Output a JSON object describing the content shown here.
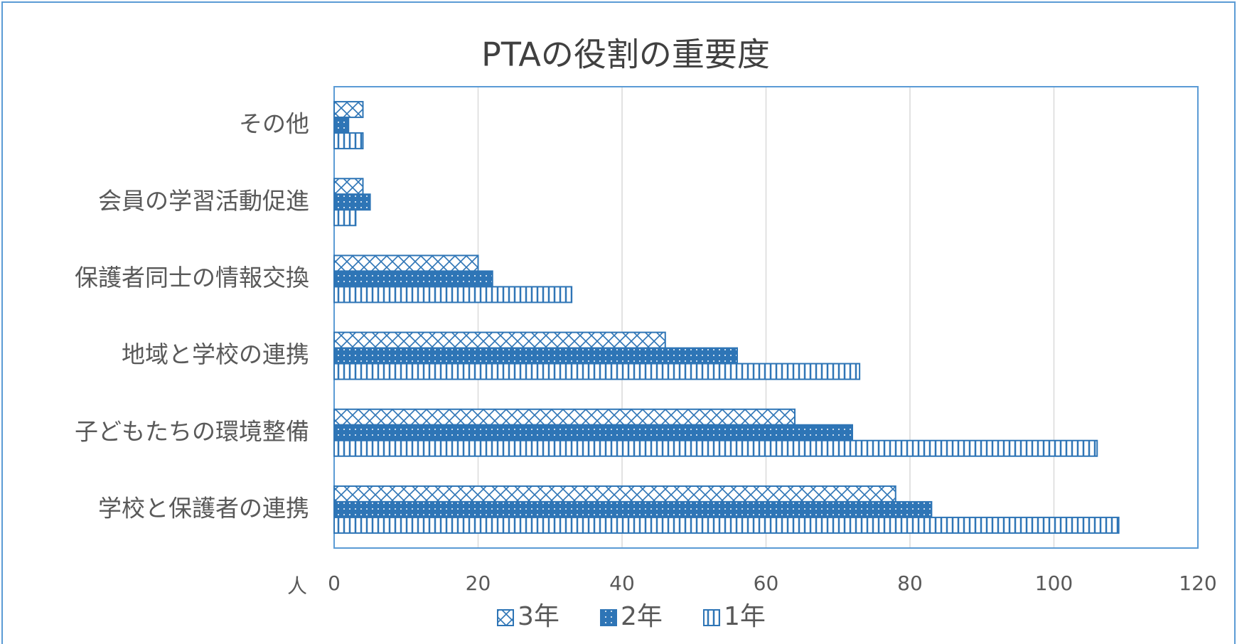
{
  "chart_data": {
    "type": "bar",
    "orientation": "horizontal",
    "title": "PTAの役割の重要度",
    "categories": [
      "その他",
      "会員の学習活動促進",
      "保護者同士の情報交換",
      "地域と学校の連携",
      "子どもたちの環境整備",
      "学校と保護者の連携"
    ],
    "series": [
      {
        "name": "3年",
        "color": "#2e75b6",
        "values": [
          4,
          4,
          20,
          46,
          64,
          78
        ]
      },
      {
        "name": "2年",
        "color": "#2e75b6",
        "values": [
          2,
          5,
          22,
          56,
          72,
          83
        ]
      },
      {
        "name": "1年",
        "color": "#2e75b6",
        "values": [
          4,
          3,
          33,
          73,
          106,
          109
        ]
      }
    ],
    "xlabel": "人",
    "xlim": [
      0,
      120
    ],
    "xticks": [
      0,
      20,
      40,
      60,
      80,
      100,
      120
    ],
    "grid": true,
    "legend": "bottom"
  }
}
